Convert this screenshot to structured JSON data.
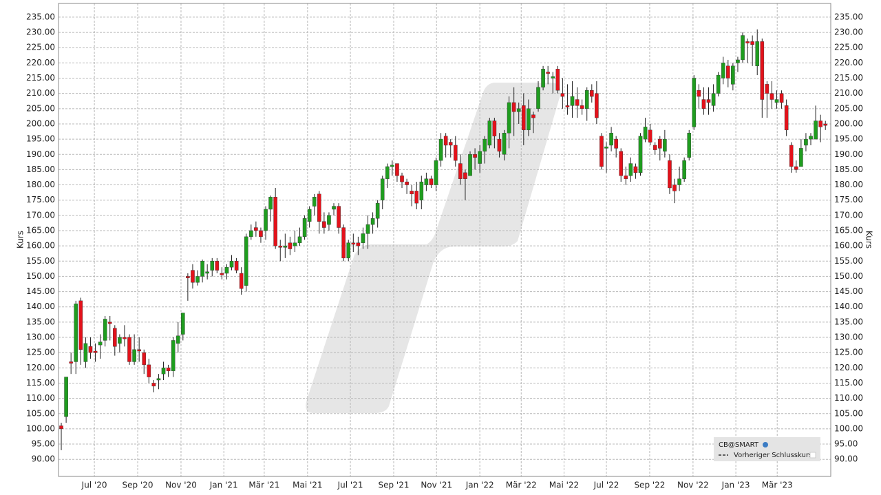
{
  "chart_data": {
    "type": "candlestick",
    "y_label": "Kurs",
    "legend": [
      "CB@SMART",
      "Vorheriger Schlusskurs"
    ],
    "legend_corner": "lower right",
    "grid": true,
    "up_color": "#1f9d1f",
    "down_color": "#e3121b",
    "xlim": [
      -0.57,
      158.1
    ],
    "xticks": [
      {
        "value": 6.8,
        "label": "Jul '20"
      },
      {
        "value": 15.7,
        "label": "Sep '20"
      },
      {
        "value": 24.6,
        "label": "Nov '20"
      },
      {
        "value": 33.4,
        "label": "Jan '21"
      },
      {
        "value": 41.7,
        "label": "Mär '21"
      },
      {
        "value": 50.6,
        "label": "Mai '21"
      },
      {
        "value": 59.4,
        "label": "Jul '21"
      },
      {
        "value": 68.3,
        "label": "Sep '21"
      },
      {
        "value": 77.1,
        "label": "Nov '21"
      },
      {
        "value": 86.0,
        "label": "Jan '22"
      },
      {
        "value": 94.5,
        "label": "Mär '22"
      },
      {
        "value": 103.3,
        "label": "Mai '22"
      },
      {
        "value": 112.0,
        "label": "Jul '22"
      },
      {
        "value": 120.9,
        "label": "Sep '22"
      },
      {
        "value": 129.8,
        "label": "Nov '22"
      },
      {
        "value": 138.6,
        "label": "Jan '23"
      },
      {
        "value": 147.1,
        "label": "Mär '23"
      }
    ],
    "ylim": [
      84.4,
      239.5
    ],
    "yticks": [
      {
        "value": 90,
        "label": "90.00"
      },
      {
        "value": 95,
        "label": "95.00"
      },
      {
        "value": 100,
        "label": "100.00"
      },
      {
        "value": 105,
        "label": "105.00"
      },
      {
        "value": 110,
        "label": "110.00"
      },
      {
        "value": 115,
        "label": "115.00"
      },
      {
        "value": 120,
        "label": "120.00"
      },
      {
        "value": 125,
        "label": "125.00"
      },
      {
        "value": 130,
        "label": "130.00"
      },
      {
        "value": 135,
        "label": "135.00"
      },
      {
        "value": 140,
        "label": "140.00"
      },
      {
        "value": 145,
        "label": "145.00"
      },
      {
        "value": 150,
        "label": "150.00"
      },
      {
        "value": 155,
        "label": "155.00"
      },
      {
        "value": 160,
        "label": "160.00"
      },
      {
        "value": 165,
        "label": "165.00"
      },
      {
        "value": 170,
        "label": "170.00"
      },
      {
        "value": 175,
        "label": "175.00"
      },
      {
        "value": 180,
        "label": "180.00"
      },
      {
        "value": 185,
        "label": "185.00"
      },
      {
        "value": 190,
        "label": "190.00"
      },
      {
        "value": 195,
        "label": "195.00"
      },
      {
        "value": 200,
        "label": "200.00"
      },
      {
        "value": 205,
        "label": "205.00"
      },
      {
        "value": 210,
        "label": "210.00"
      },
      {
        "value": 215,
        "label": "215.00"
      },
      {
        "value": 220,
        "label": "220.00"
      },
      {
        "value": 225,
        "label": "225.00"
      },
      {
        "value": 230,
        "label": "230.00"
      },
      {
        "value": 235,
        "label": "235.00"
      }
    ],
    "open": [
      101,
      104,
      122,
      122,
      142,
      122,
      127,
      125.5,
      127.5,
      129,
      135,
      133,
      128,
      130,
      130,
      122,
      126,
      125,
      121,
      115,
      116,
      118,
      120,
      119,
      128,
      131,
      150,
      152,
      148,
      150,
      151,
      152,
      155,
      151,
      151,
      153,
      155,
      151,
      147,
      163,
      166,
      165,
      165,
      172,
      176,
      160,
      159.5,
      161,
      160,
      161,
      163,
      168,
      173,
      177,
      168,
      167,
      172,
      173,
      166,
      156,
      161,
      161,
      161,
      164,
      167,
      169,
      175,
      182,
      186,
      187,
      183,
      181,
      178,
      178,
      175,
      180,
      182,
      180,
      188,
      196,
      194,
      193,
      187,
      184,
      183,
      190,
      187,
      191,
      193,
      201,
      195,
      190,
      197,
      207,
      204,
      206,
      198,
      203,
      205,
      212,
      217,
      215,
      218,
      210,
      206,
      206,
      208,
      206,
      205,
      211,
      210,
      196,
      192,
      193,
      195,
      191,
      183,
      183,
      186,
      184,
      195,
      198,
      193,
      195,
      191,
      188,
      180,
      180,
      182,
      189,
      199,
      211,
      208,
      208,
      206,
      210,
      215,
      219,
      213,
      220,
      221,
      227,
      227,
      219,
      227,
      213,
      210,
      207,
      210,
      206,
      193,
      186,
      186,
      193,
      195,
      195,
      201,
      200
    ],
    "high": [
      102,
      117,
      125,
      142,
      143,
      130,
      130,
      128,
      131,
      137,
      137,
      134,
      131,
      134,
      131,
      131,
      130,
      126,
      123,
      116,
      118,
      122,
      121,
      130,
      135,
      138,
      151,
      154,
      152,
      155.5,
      154,
      156,
      156,
      153,
      154,
      157,
      156,
      153,
      164,
      167,
      168,
      166,
      173,
      176.5,
      179,
      162,
      164,
      163,
      165,
      166,
      170,
      173,
      177,
      178,
      171,
      171,
      174,
      174,
      167,
      162,
      164,
      163,
      166,
      170,
      171,
      175,
      183,
      187,
      188,
      187,
      184,
      182,
      180,
      181,
      183,
      184,
      183,
      189,
      197,
      197,
      195,
      196,
      190,
      185,
      191,
      192,
      193,
      196,
      202,
      202,
      197,
      198,
      209,
      212,
      207,
      210,
      208,
      204,
      214,
      219,
      219,
      217,
      219,
      215,
      213,
      214,
      212,
      208,
      212,
      213,
      214,
      197,
      194,
      199,
      196,
      192,
      186,
      189,
      187,
      197,
      202,
      200,
      194,
      196,
      198,
      190,
      182,
      186,
      189,
      198,
      216,
      213,
      212,
      212,
      213,
      217,
      222,
      221,
      220,
      222,
      230,
      228,
      229,
      231,
      228,
      214,
      214,
      211,
      211,
      208,
      194,
      188,
      195,
      197,
      197,
      206,
      203,
      201
    ],
    "low": [
      93,
      102,
      118,
      118,
      121,
      120,
      123,
      122,
      123,
      127,
      129,
      124,
      125,
      127,
      121,
      121,
      122,
      118,
      115,
      112,
      113,
      116,
      117,
      117,
      125,
      129,
      142,
      146,
      147,
      148,
      149,
      150,
      151,
      149,
      149,
      152,
      151,
      144,
      145,
      162,
      163,
      161,
      162,
      168,
      159,
      155,
      156,
      157,
      158,
      160,
      162,
      166,
      170,
      164,
      164,
      165,
      170,
      164,
      155,
      155,
      158,
      157,
      159,
      159,
      164,
      166,
      172,
      179,
      183,
      181,
      179,
      177,
      173,
      172,
      172,
      178,
      179,
      178,
      186,
      189,
      189,
      186,
      180,
      175,
      183,
      185,
      184,
      187,
      192,
      192,
      189,
      188,
      192,
      196,
      200,
      193,
      196,
      197,
      204,
      211,
      213,
      210,
      210,
      205,
      203,
      202,
      202,
      203,
      201,
      207,
      200,
      185,
      184,
      191,
      189,
      181,
      180,
      181,
      182,
      183,
      194,
      193,
      190,
      188,
      189,
      177,
      174,
      178,
      181,
      188,
      198,
      205,
      203,
      203,
      204,
      209,
      213,
      212,
      211,
      217,
      220,
      220,
      219,
      216,
      202,
      202,
      205,
      205,
      205,
      196,
      184,
      184,
      186,
      191,
      193,
      195,
      194,
      198
    ],
    "close": [
      100,
      117,
      121.5,
      141,
      126,
      128,
      125,
      125,
      128.5,
      136,
      134.5,
      127,
      130,
      129.5,
      122,
      126,
      125.5,
      121,
      117,
      114,
      116.5,
      120,
      119,
      129,
      130.5,
      138,
      149.5,
      148,
      150,
      155,
      151.5,
      155,
      152,
      150.5,
      153,
      155,
      152,
      146,
      163,
      165,
      165,
      163,
      172,
      176,
      160,
      159.5,
      160,
      159,
      161,
      163,
      169,
      172,
      176,
      168,
      166,
      170,
      173,
      166,
      156,
      161,
      160.5,
      160,
      164,
      167,
      169,
      174,
      182,
      186,
      186.5,
      183,
      181,
      180,
      177,
      174,
      181,
      182,
      180,
      188,
      195,
      193,
      193,
      188,
      182,
      182,
      190,
      189,
      191,
      195,
      201,
      196,
      191,
      197,
      207,
      204,
      205,
      198,
      205,
      202,
      212,
      218,
      216.5,
      215.5,
      211,
      209,
      205.5,
      209,
      206,
      205,
      211,
      209,
      202,
      186,
      192.5,
      197,
      192,
      183,
      182,
      187,
      184,
      196,
      199,
      194,
      191.5,
      192,
      195,
      179,
      178,
      182,
      188,
      197,
      215,
      209,
      205,
      207,
      210,
      216,
      220,
      215,
      219,
      221,
      229,
      226.5,
      226,
      227,
      208,
      210,
      208,
      208,
      207,
      198,
      186,
      185,
      192,
      195,
      196,
      201,
      199,
      199.5
    ]
  }
}
